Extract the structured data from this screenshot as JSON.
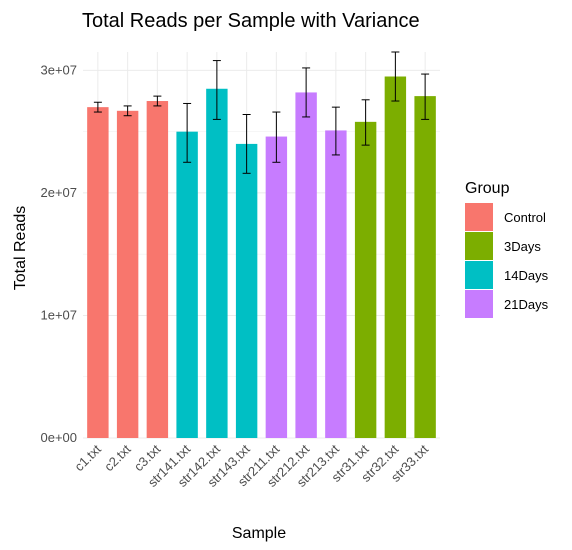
{
  "chart_data": {
    "type": "bar",
    "title": "Total Reads per Sample with Variance",
    "xlabel": "Sample",
    "ylabel": "Total Reads",
    "ylim": [
      0,
      31500000
    ],
    "yticks": [
      0,
      10000000,
      20000000,
      30000000
    ],
    "ytick_labels": [
      "0e+00",
      "1e+07",
      "2e+07",
      "3e+07"
    ],
    "grid": true,
    "error_bars": true,
    "legend": {
      "title": "Group",
      "placement": "right",
      "entries": [
        {
          "name": "Control",
          "color": "#F8766D"
        },
        {
          "name": "3Days",
          "color": "#7CAE00"
        },
        {
          "name": "14Days",
          "color": "#00BFC4"
        },
        {
          "name": "21Days",
          "color": "#C77CFF"
        }
      ]
    },
    "categories": [
      "c1.txt",
      "c2.txt",
      "c3.txt",
      "str141.txt",
      "str142.txt",
      "str143.txt",
      "str211.txt",
      "str212.txt",
      "str213.txt",
      "str31.txt",
      "str32.txt",
      "str33.txt"
    ],
    "groups": [
      "Control",
      "Control",
      "Control",
      "14Days",
      "14Days",
      "14Days",
      "21Days",
      "21Days",
      "21Days",
      "3Days",
      "3Days",
      "3Days"
    ],
    "values": [
      27000000,
      26700000,
      27500000,
      25000000,
      28500000,
      24000000,
      24600000,
      28200000,
      25100000,
      25800000,
      29500000,
      27900000
    ],
    "error_low": [
      26600000,
      26300000,
      27100000,
      22500000,
      26000000,
      21600000,
      22500000,
      26200000,
      23100000,
      23900000,
      27500000,
      26000000
    ],
    "error_high": [
      27400000,
      27100000,
      27900000,
      27300000,
      30800000,
      26400000,
      26600000,
      30200000,
      27000000,
      27600000,
      31500000,
      29700000
    ]
  }
}
